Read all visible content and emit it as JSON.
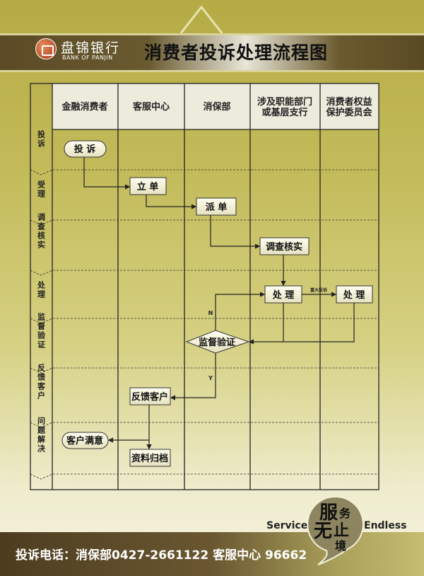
{
  "header": {
    "bank_name_cn": "盘锦银行",
    "bank_name_en": "BANK OF PANJIN",
    "title": "消费者投诉处理流程图"
  },
  "columns": [
    "金融消费者",
    "客服中心",
    "消保部",
    "涉及职能部门",
    "或基层支行",
    "消费者权益",
    "保护委员会"
  ],
  "rows": [
    "投诉",
    "受理",
    "调查核实",
    "处理",
    "监督验证",
    "反馈客户",
    "问题解决"
  ],
  "nodes": {
    "complaint": "投 诉",
    "register": "立 单",
    "dispatch": "派 单",
    "investigate": "调查核实",
    "handle1": "处 理",
    "handle2": "处 理",
    "supervise": "监督验证",
    "feedback": "反馈客户",
    "satisfied": "客户满意",
    "archive": "资料归档"
  },
  "edge_labels": {
    "major": "重大投诉",
    "no": "N",
    "yes": "Y"
  },
  "slogan": {
    "left": "Service",
    "right": "Endless",
    "c1": "服",
    "c2": "务",
    "c3": "无",
    "c4": "止",
    "c5": "境"
  },
  "footer": {
    "phone": "投诉电话：消保部0427-2661122  客服中心 96662"
  }
}
